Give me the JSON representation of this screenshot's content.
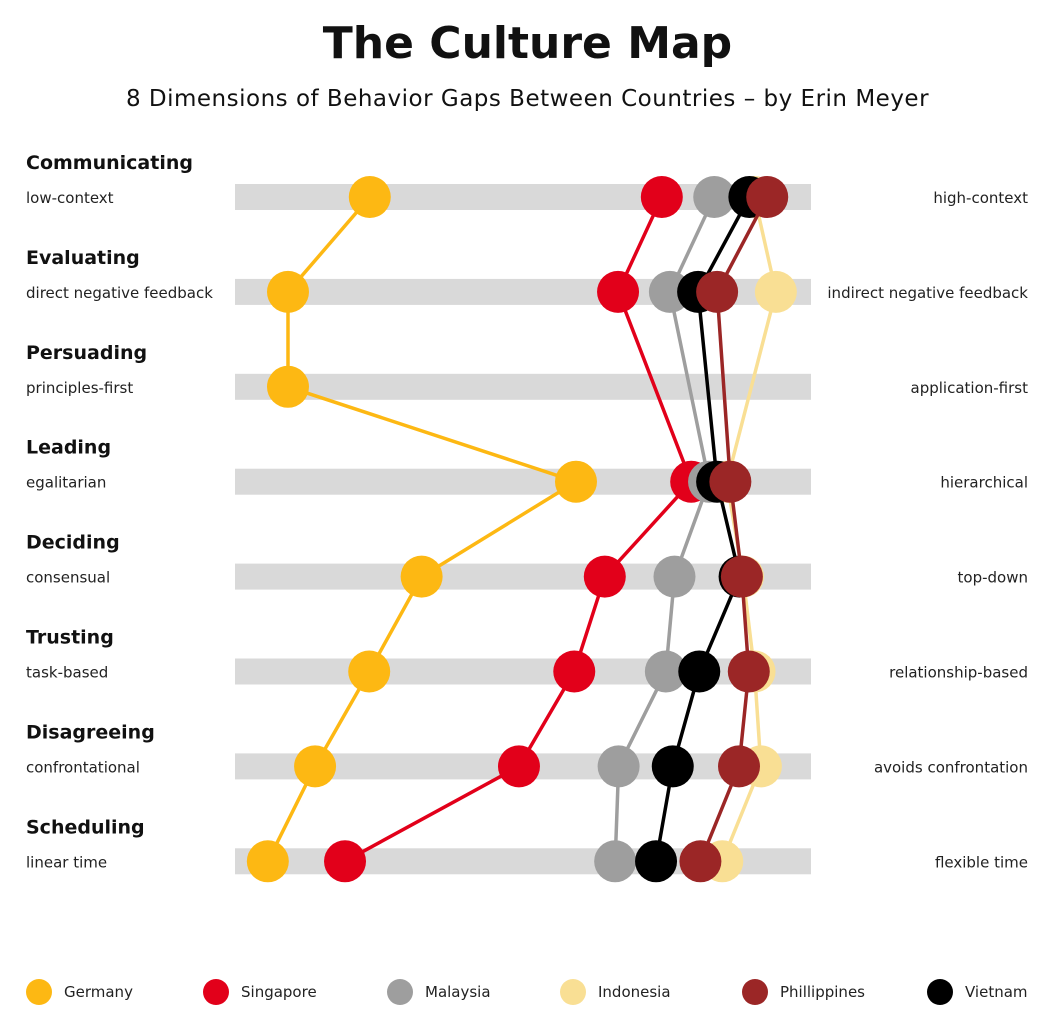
{
  "header": {
    "title": "The Culture Map",
    "subtitle": "8 Dimensions of Behavior Gaps Between Countries – by Erin Meyer"
  },
  "chart_data": {
    "type": "line",
    "title": "The Culture Map",
    "subtitle": "8 Dimensions of Behavior Gaps Between Countries – by Erin Meyer",
    "scale_note": "value 0 = left pole, 100 = right pole",
    "xlim": [
      0,
      100
    ],
    "dimensions": [
      {
        "name": "Communicating",
        "left": "low-context",
        "right": "high-context"
      },
      {
        "name": "Evaluating",
        "left": "direct negative feedback",
        "right": "indirect negative feedback"
      },
      {
        "name": "Persuading",
        "left": "principles-first",
        "right": "application-first"
      },
      {
        "name": "Leading",
        "left": "egalitarian",
        "right": "hierarchical"
      },
      {
        "name": "Deciding",
        "left": "consensual",
        "right": "top-down"
      },
      {
        "name": "Trusting",
        "left": "task-based",
        "right": "relationship-based"
      },
      {
        "name": "Disagreeing",
        "left": "confrontational",
        "right": "avoids confrontation"
      },
      {
        "name": "Scheduling",
        "left": "linear time",
        "right": "flexible time"
      }
    ],
    "series": [
      {
        "name": "Germany",
        "color": "#FDB813",
        "values": [
          23.4,
          9.2,
          9.2,
          59.2,
          32.4,
          23.3,
          13.9,
          5.7
        ]
      },
      {
        "name": "Singapore",
        "color": "#E2001A",
        "values": [
          74.1,
          66.5,
          null,
          79.2,
          64.2,
          58.9,
          49.3,
          19.1
        ]
      },
      {
        "name": "Malaysia",
        "color": "#9E9E9E",
        "values": [
          83.2,
          75.5,
          null,
          82.3,
          76.3,
          74.8,
          66.6,
          66.0
        ]
      },
      {
        "name": "Indonesia",
        "color": "#F9DF94",
        "values": [
          90.2,
          93.9,
          null,
          85.4,
          88.2,
          90.2,
          91.3,
          84.6
        ]
      },
      {
        "name": "Phillippines",
        "color": "#9B2626",
        "values": [
          92.4,
          83.7,
          null,
          86.0,
          88.0,
          89.2,
          87.5,
          80.8
        ]
      },
      {
        "name": "Vietnam",
        "color": "#000000",
        "values": [
          89.3,
          80.4,
          null,
          83.7,
          87.6,
          80.6,
          76.0,
          73.1
        ]
      }
    ]
  },
  "legend": [
    {
      "name": "Germany",
      "color": "#FDB813"
    },
    {
      "name": "Singapore",
      "color": "#E2001A"
    },
    {
      "name": "Malaysia",
      "color": "#9E9E9E"
    },
    {
      "name": "Indonesia",
      "color": "#F9DF94"
    },
    {
      "name": "Phillippines",
      "color": "#9B2626"
    },
    {
      "name": "Vietnam",
      "color": "#000000"
    }
  ]
}
